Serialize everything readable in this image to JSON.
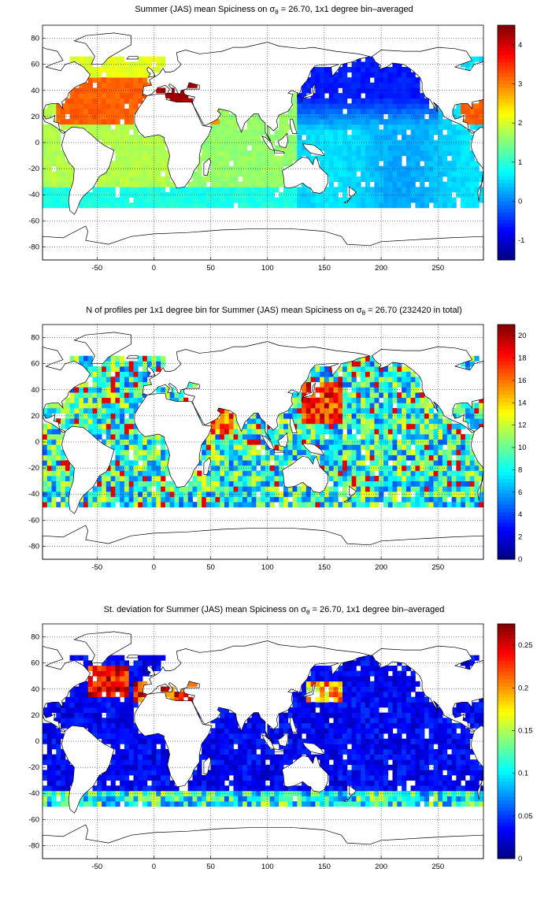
{
  "chart_data": [
    {
      "type": "heatmap",
      "title_parts": {
        "pre": "Summer (JAS) mean Spiciness on ",
        "sym": "σ",
        "sub": "θ",
        "post": " = 26.70, 1x1 degree bin–averaged"
      },
      "xticks": [
        "-50",
        "0",
        "50",
        "100",
        "150",
        "200",
        "250"
      ],
      "xtick_values": [
        -50,
        0,
        50,
        100,
        150,
        200,
        250
      ],
      "yticks": [
        "80",
        "60",
        "40",
        "20",
        "0",
        "-20",
        "-40",
        "-60",
        "-80"
      ],
      "ytick_values": [
        80,
        60,
        40,
        20,
        0,
        -20,
        -40,
        -60,
        -80
      ],
      "xlim": [
        -98,
        290
      ],
      "ylim": [
        -90,
        90
      ],
      "grid": true,
      "colorbar": {
        "ticks": [
          "4",
          "3",
          "2",
          "1",
          "0",
          "-1"
        ],
        "tick_values": [
          4,
          3,
          2,
          1,
          0,
          -1
        ],
        "range": [
          -1.5,
          4.5
        ],
        "colormap": "jet"
      },
      "field": "spiciness"
    },
    {
      "type": "heatmap",
      "title_parts": {
        "pre": "N of profiles per 1x1 degree bin for Summer (JAS) mean Spiciness on ",
        "sym": "σ",
        "sub": "θ",
        "post": " = 26.70 (232420 in total)"
      },
      "xticks": [
        "-50",
        "0",
        "50",
        "100",
        "150",
        "200",
        "250"
      ],
      "xtick_values": [
        -50,
        0,
        50,
        100,
        150,
        200,
        250
      ],
      "yticks": [
        "80",
        "60",
        "40",
        "20",
        "0",
        "-20",
        "-40",
        "-60",
        "-80"
      ],
      "ytick_values": [
        80,
        60,
        40,
        20,
        0,
        -20,
        -40,
        -60,
        -80
      ],
      "xlim": [
        -98,
        290
      ],
      "ylim": [
        -90,
        90
      ],
      "grid": true,
      "colorbar": {
        "ticks": [
          "20",
          "18",
          "16",
          "14",
          "12",
          "10",
          "8",
          "6",
          "4",
          "2",
          "0"
        ],
        "tick_values": [
          20,
          18,
          16,
          14,
          12,
          10,
          8,
          6,
          4,
          2,
          0
        ],
        "range": [
          0,
          21
        ],
        "colormap": "jet"
      },
      "field": "count"
    },
    {
      "type": "heatmap",
      "title_parts": {
        "pre": "St. deviation for Summer (JAS) mean Spiciness on ",
        "sym": "σ",
        "sub": "θ",
        "post": " = 26.70, 1x1 degree bin–averaged"
      },
      "xticks": [
        "-50",
        "0",
        "50",
        "100",
        "150",
        "200",
        "250"
      ],
      "xtick_values": [
        -50,
        0,
        50,
        100,
        150,
        200,
        250
      ],
      "yticks": [
        "80",
        "60",
        "40",
        "20",
        "0",
        "-20",
        "-40",
        "-60",
        "-80"
      ],
      "ytick_values": [
        80,
        60,
        40,
        20,
        0,
        -20,
        -40,
        -60,
        -80
      ],
      "xlim": [
        -98,
        290
      ],
      "ylim": [
        -90,
        90
      ],
      "grid": true,
      "colorbar": {
        "ticks": [
          "0.25",
          "0.2",
          "0.15",
          "0.1",
          "0.05",
          "0"
        ],
        "tick_values": [
          0.25,
          0.2,
          0.15,
          0.1,
          0.05,
          0
        ],
        "range": [
          0,
          0.275
        ],
        "colormap": "jet"
      },
      "field": "stdev"
    }
  ]
}
